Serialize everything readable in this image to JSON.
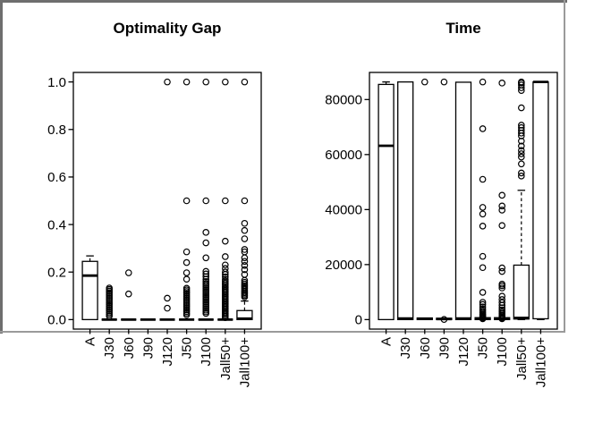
{
  "figure": {
    "background": "#ffffff",
    "colors": {
      "stroke": "#000000",
      "fill": "#ffffff",
      "border_dark": "#6e6e6e",
      "border_light": "#9a9a9a"
    }
  },
  "chart_data": [
    {
      "type": "boxplot",
      "title": "Optimality Gap",
      "categories": [
        "A",
        "J30",
        "J60",
        "J90",
        "J120",
        "J50",
        "J100",
        "Jall50+",
        "Jall100+"
      ],
      "ylim": [
        0,
        1.0
      ],
      "yticks": [
        0,
        0.2,
        0.4,
        0.6,
        0.8,
        1.0
      ],
      "ytick_labels": [
        "0.0",
        "0.2",
        "0.4",
        "0.6",
        "0.8",
        "1.0"
      ],
      "grid": false,
      "boxes": [
        {
          "category": "A",
          "whislo": 0,
          "q1": 0,
          "med": 0.185,
          "q3": 0.245,
          "whishi": 0.268,
          "outliers": []
        },
        {
          "category": "J30",
          "whislo": 0,
          "q1": 0,
          "med": 0,
          "q3": 0,
          "whishi": 0,
          "outliers": [
            0.015,
            0.022,
            0.029,
            0.036,
            0.043,
            0.05,
            0.057,
            0.064,
            0.071,
            0.078,
            0.085,
            0.092,
            0.099,
            0.106,
            0.113,
            0.12,
            0.127,
            0.133
          ]
        },
        {
          "category": "J60",
          "whislo": 0,
          "q1": 0,
          "med": 0,
          "q3": 0,
          "whishi": 0,
          "outliers": [
            0.108,
            0.197
          ]
        },
        {
          "category": "J90",
          "whislo": 0,
          "q1": 0,
          "med": 0,
          "q3": 0,
          "whishi": 0,
          "outliers": []
        },
        {
          "category": "J120",
          "whislo": 0,
          "q1": 0,
          "med": 0,
          "q3": 0,
          "whishi": 0,
          "outliers": [
            0.048,
            0.09,
            1.0
          ]
        },
        {
          "category": "J50",
          "whislo": 0,
          "q1": 0,
          "med": 0,
          "q3": 0,
          "whishi": 0,
          "outliers": [
            0.02,
            0.027,
            0.034,
            0.041,
            0.048,
            0.055,
            0.062,
            0.069,
            0.076,
            0.083,
            0.09,
            0.097,
            0.104,
            0.111,
            0.118,
            0.125,
            0.132,
            0.17,
            0.197,
            0.24,
            0.285,
            0.5,
            1.0
          ]
        },
        {
          "category": "J100",
          "whislo": 0,
          "q1": 0,
          "med": 0,
          "q3": 0,
          "whishi": 0,
          "outliers": [
            0.026,
            0.033,
            0.04,
            0.047,
            0.054,
            0.061,
            0.068,
            0.075,
            0.082,
            0.089,
            0.096,
            0.103,
            0.11,
            0.117,
            0.124,
            0.131,
            0.138,
            0.145,
            0.152,
            0.16,
            0.17,
            0.181,
            0.192,
            0.203,
            0.26,
            0.323,
            0.367,
            0.5,
            1.0
          ]
        },
        {
          "category": "Jall50+",
          "whislo": 0,
          "q1": 0,
          "med": 0,
          "q3": 0,
          "whishi": 0,
          "outliers": [
            0.008,
            0.014,
            0.02,
            0.026,
            0.032,
            0.038,
            0.044,
            0.05,
            0.056,
            0.062,
            0.068,
            0.074,
            0.08,
            0.086,
            0.092,
            0.098,
            0.104,
            0.11,
            0.116,
            0.122,
            0.128,
            0.134,
            0.14,
            0.147,
            0.154,
            0.162,
            0.17,
            0.18,
            0.19,
            0.2,
            0.215,
            0.23,
            0.265,
            0.33,
            0.5,
            1.0
          ]
        },
        {
          "category": "Jall100+",
          "whislo": 0,
          "q1": 0,
          "med": 0.004,
          "q3": 0.038,
          "whishi": 0.078,
          "outliers": [
            0.095,
            0.101,
            0.107,
            0.113,
            0.119,
            0.125,
            0.131,
            0.137,
            0.143,
            0.15,
            0.157,
            0.165,
            0.19,
            0.21,
            0.228,
            0.245,
            0.26,
            0.285,
            0.295,
            0.34,
            0.375,
            0.405,
            0.5,
            1.0
          ]
        }
      ]
    },
    {
      "type": "boxplot",
      "title": "Time",
      "categories": [
        "A",
        "J30",
        "J60",
        "J90",
        "J120",
        "J50",
        "J100",
        "Jall50+",
        "Jall100+"
      ],
      "ylim": [
        0,
        86400
      ],
      "yticks": [
        0,
        20000,
        40000,
        60000,
        80000
      ],
      "ytick_labels": [
        "0",
        "20000",
        "40000",
        "60000",
        "80000"
      ],
      "grid": false,
      "boxes": [
        {
          "category": "A",
          "whislo": 0,
          "q1": 0,
          "med": 63200,
          "q3": 85500,
          "whishi": 86400,
          "outliers": []
        },
        {
          "category": "J30",
          "whislo": 0,
          "q1": 0,
          "med": 400,
          "q3": 86400,
          "whishi": 86400,
          "outliers": []
        },
        {
          "category": "J60",
          "whislo": 0,
          "q1": 0,
          "med": 250,
          "q3": 600,
          "whishi": 600,
          "outliers": [
            86400
          ]
        },
        {
          "category": "J90",
          "whislo": 0,
          "q1": 0,
          "med": 200,
          "q3": 500,
          "whishi": 500,
          "outliers": [
            50,
            86400
          ]
        },
        {
          "category": "J120",
          "whislo": 0,
          "q1": 0,
          "med": 400,
          "q3": 86300,
          "whishi": 86300,
          "outliers": []
        },
        {
          "category": "J50",
          "whislo": 0,
          "q1": 0,
          "med": 300,
          "q3": 700,
          "whishi": 700,
          "outliers": [
            300,
            600,
            900,
            1200,
            1600,
            2000,
            2500,
            3100,
            3800,
            4600,
            5500,
            6300,
            9900,
            18900,
            23000,
            34000,
            38400,
            40800,
            51000,
            69400,
            86400
          ]
        },
        {
          "category": "J100",
          "whislo": 0,
          "q1": 0,
          "med": 300,
          "q3": 700,
          "whishi": 700,
          "outliers": [
            300,
            600,
            900,
            1300,
            1700,
            2200,
            2800,
            3500,
            4300,
            5200,
            6200,
            7300,
            8500,
            11500,
            12300,
            12900,
            17500,
            18800,
            34200,
            39800,
            41300,
            45200,
            86000
          ]
        },
        {
          "category": "Jall50+",
          "whislo": 0,
          "q1": 200,
          "med": 600,
          "q3": 19800,
          "whishi": 47000,
          "outliers": [
            52200,
            53300,
            56600,
            59100,
            60300,
            61500,
            63100,
            64900,
            66800,
            67800,
            68800,
            69800,
            70700,
            77000,
            83300,
            84300,
            85300,
            86000,
            86400
          ]
        },
        {
          "category": "Jall100+",
          "whislo": 0,
          "q1": 300,
          "med": 86400,
          "q3": 86400,
          "whishi": 86400,
          "outliers": []
        }
      ]
    }
  ]
}
